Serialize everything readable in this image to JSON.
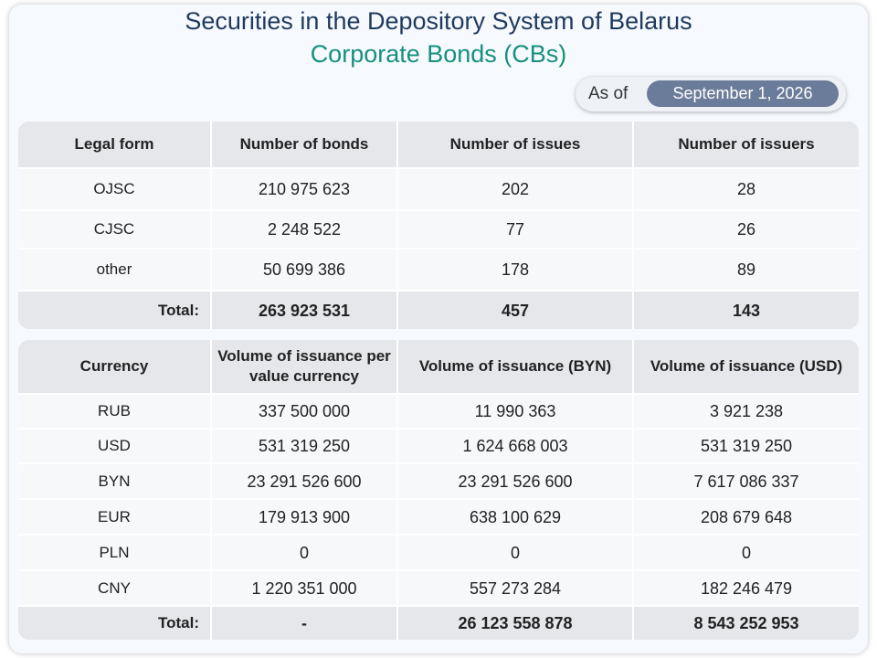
{
  "header": {
    "title": "Securities in the Depository System of Belarus",
    "subtitle": "Corporate Bonds (CBs)",
    "as_of_label": "As of",
    "as_of_date": "September 1, 2026"
  },
  "bonds_table": {
    "columns": [
      "Legal form",
      "Number of bonds",
      "Number of issues",
      "Number of issuers"
    ],
    "rows": [
      [
        "OJSC",
        "210 975 623",
        "202",
        "28"
      ],
      [
        "CJSC",
        "2 248 522",
        "77",
        "26"
      ],
      [
        "other",
        "50 699 386",
        "178",
        "89"
      ]
    ],
    "total": [
      "Total:",
      "263 923 531",
      "457",
      "143"
    ]
  },
  "currency_table": {
    "columns": [
      "Currency",
      "Volume of issuance per value currency",
      "Volume of issuance (BYN)",
      "Volume of issuance (USD)"
    ],
    "rows": [
      [
        "RUB",
        "337 500 000",
        "11 990 363",
        "3 921 238"
      ],
      [
        "USD",
        "531 319 250",
        "1 624 668 003",
        "531 319 250"
      ],
      [
        "BYN",
        "23 291 526 600",
        "23 291 526 600",
        "7 617 086 337"
      ],
      [
        "EUR",
        "179 913 900",
        "638 100 629",
        "208 679 648"
      ],
      [
        "PLN",
        "0",
        "0",
        "0"
      ],
      [
        "CNY",
        "1 220 351 000",
        "557 273 284",
        "182 246 479"
      ]
    ],
    "total": [
      "Total:",
      "-",
      "26 123 558 878",
      "8 543 252 953"
    ]
  }
}
